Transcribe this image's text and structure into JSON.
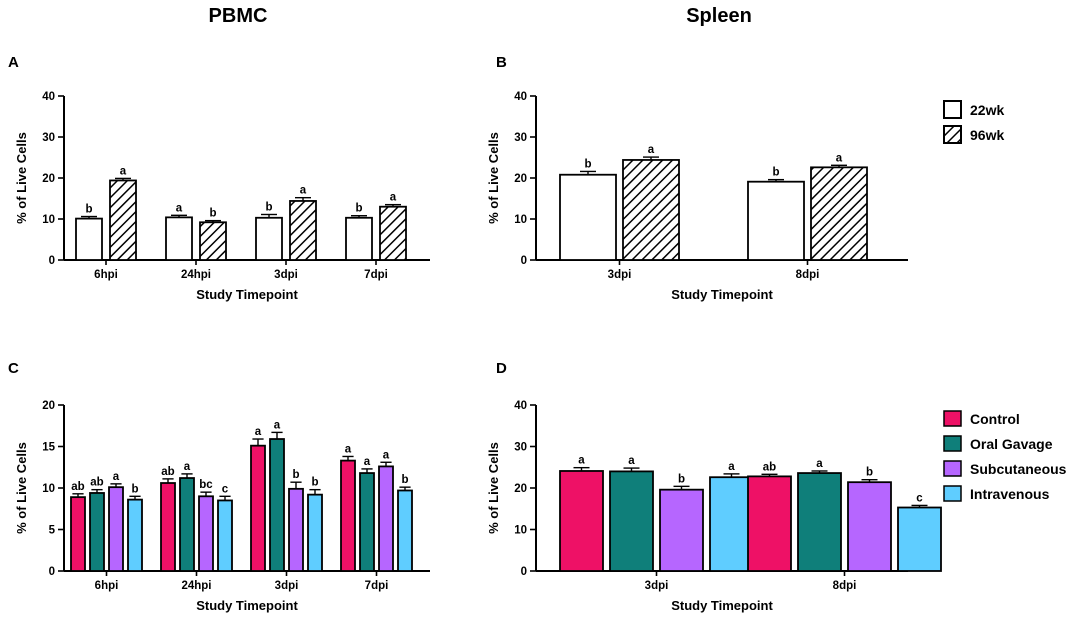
{
  "figure": {
    "col_titles": [
      "PBMC",
      "Spleen"
    ],
    "legend_top": [
      {
        "label": "22wk",
        "pattern": "open"
      },
      {
        "label": "96wk",
        "pattern": "hatch"
      }
    ],
    "legend_bottom": [
      {
        "label": "Control",
        "color": "#ee1166"
      },
      {
        "label": "Oral Gavage",
        "color": "#0f7f7a"
      },
      {
        "label": "Subcutaneous",
        "color": "#b666ff"
      },
      {
        "label": "Intravenous",
        "color": "#5fcdff"
      }
    ]
  },
  "chart_data": [
    {
      "panel": "A",
      "type": "bar",
      "ylabel": "% of Live Cells",
      "xlabel": "Study Timepoint",
      "ylim": [
        0,
        40
      ],
      "yticks": [
        0,
        10,
        20,
        30,
        40
      ],
      "categories": [
        "6hpi",
        "24hpi",
        "3dpi",
        "7dpi"
      ],
      "series": [
        {
          "name": "22wk",
          "values": [
            10.1,
            10.4,
            10.3,
            10.3
          ],
          "errors": [
            0.5,
            0.5,
            0.8,
            0.5
          ],
          "labels": [
            "b",
            "a",
            "b",
            "b"
          ]
        },
        {
          "name": "96wk",
          "values": [
            19.4,
            9.2,
            14.4,
            13.0
          ],
          "errors": [
            0.5,
            0.4,
            0.8,
            0.5
          ],
          "labels": [
            "a",
            "b",
            "a",
            "a"
          ]
        }
      ]
    },
    {
      "panel": "B",
      "type": "bar",
      "ylabel": "% of Live Cells",
      "xlabel": "Study Timepoint",
      "ylim": [
        0,
        40
      ],
      "yticks": [
        0,
        10,
        20,
        30,
        40
      ],
      "categories": [
        "3dpi",
        "8dpi"
      ],
      "series": [
        {
          "name": "22wk",
          "values": [
            20.8,
            19.1
          ],
          "errors": [
            0.8,
            0.5
          ],
          "labels": [
            "b",
            "b"
          ]
        },
        {
          "name": "96wk",
          "values": [
            24.4,
            22.6
          ],
          "errors": [
            0.7,
            0.5
          ],
          "labels": [
            "a",
            "a"
          ]
        }
      ]
    },
    {
      "panel": "C",
      "type": "bar",
      "ylabel": "% of Live Cells",
      "xlabel": "Study Timepoint",
      "ylim": [
        0,
        20
      ],
      "yticks": [
        0,
        5,
        10,
        15,
        20
      ],
      "categories": [
        "6hpi",
        "24hpi",
        "3dpi",
        "7dpi"
      ],
      "series": [
        {
          "name": "Control",
          "values": [
            8.9,
            10.6,
            15.1,
            13.3
          ],
          "errors": [
            0.4,
            0.5,
            0.8,
            0.5
          ],
          "labels": [
            "ab",
            "ab",
            "a",
            "a"
          ]
        },
        {
          "name": "Oral Gavage",
          "values": [
            9.4,
            11.2,
            15.9,
            11.8
          ],
          "errors": [
            0.4,
            0.5,
            0.8,
            0.5
          ],
          "labels": [
            "ab",
            "a",
            "a",
            "a"
          ]
        },
        {
          "name": "Subcutaneous",
          "values": [
            10.1,
            9.0,
            9.9,
            12.6
          ],
          "errors": [
            0.4,
            0.5,
            0.8,
            0.5
          ],
          "labels": [
            "a",
            "bc",
            "b",
            "a"
          ]
        },
        {
          "name": "Intravenous",
          "values": [
            8.6,
            8.5,
            9.2,
            9.7
          ],
          "errors": [
            0.4,
            0.5,
            0.6,
            0.4
          ],
          "labels": [
            "b",
            "c",
            "b",
            "b"
          ]
        }
      ]
    },
    {
      "panel": "D",
      "type": "bar",
      "ylabel": "% of Live Cells",
      "xlabel": "Study Timepoint",
      "ylim": [
        0,
        40
      ],
      "yticks": [
        0,
        10,
        20,
        30,
        40
      ],
      "categories": [
        "3dpi",
        "8dpi"
      ],
      "series": [
        {
          "name": "Control",
          "values": [
            24.1,
            22.8
          ],
          "errors": [
            0.8,
            0.5
          ],
          "labels": [
            "a",
            "ab"
          ]
        },
        {
          "name": "Oral Gavage",
          "values": [
            24.0,
            23.6
          ],
          "errors": [
            0.8,
            0.5
          ],
          "labels": [
            "a",
            "a"
          ]
        },
        {
          "name": "Subcutaneous",
          "values": [
            19.6,
            21.4
          ],
          "errors": [
            0.8,
            0.6
          ],
          "labels": [
            "b",
            "b"
          ]
        },
        {
          "name": "Intravenous",
          "values": [
            22.6,
            15.3
          ],
          "errors": [
            0.8,
            0.5
          ],
          "labels": [
            "a",
            "c"
          ]
        }
      ]
    }
  ]
}
